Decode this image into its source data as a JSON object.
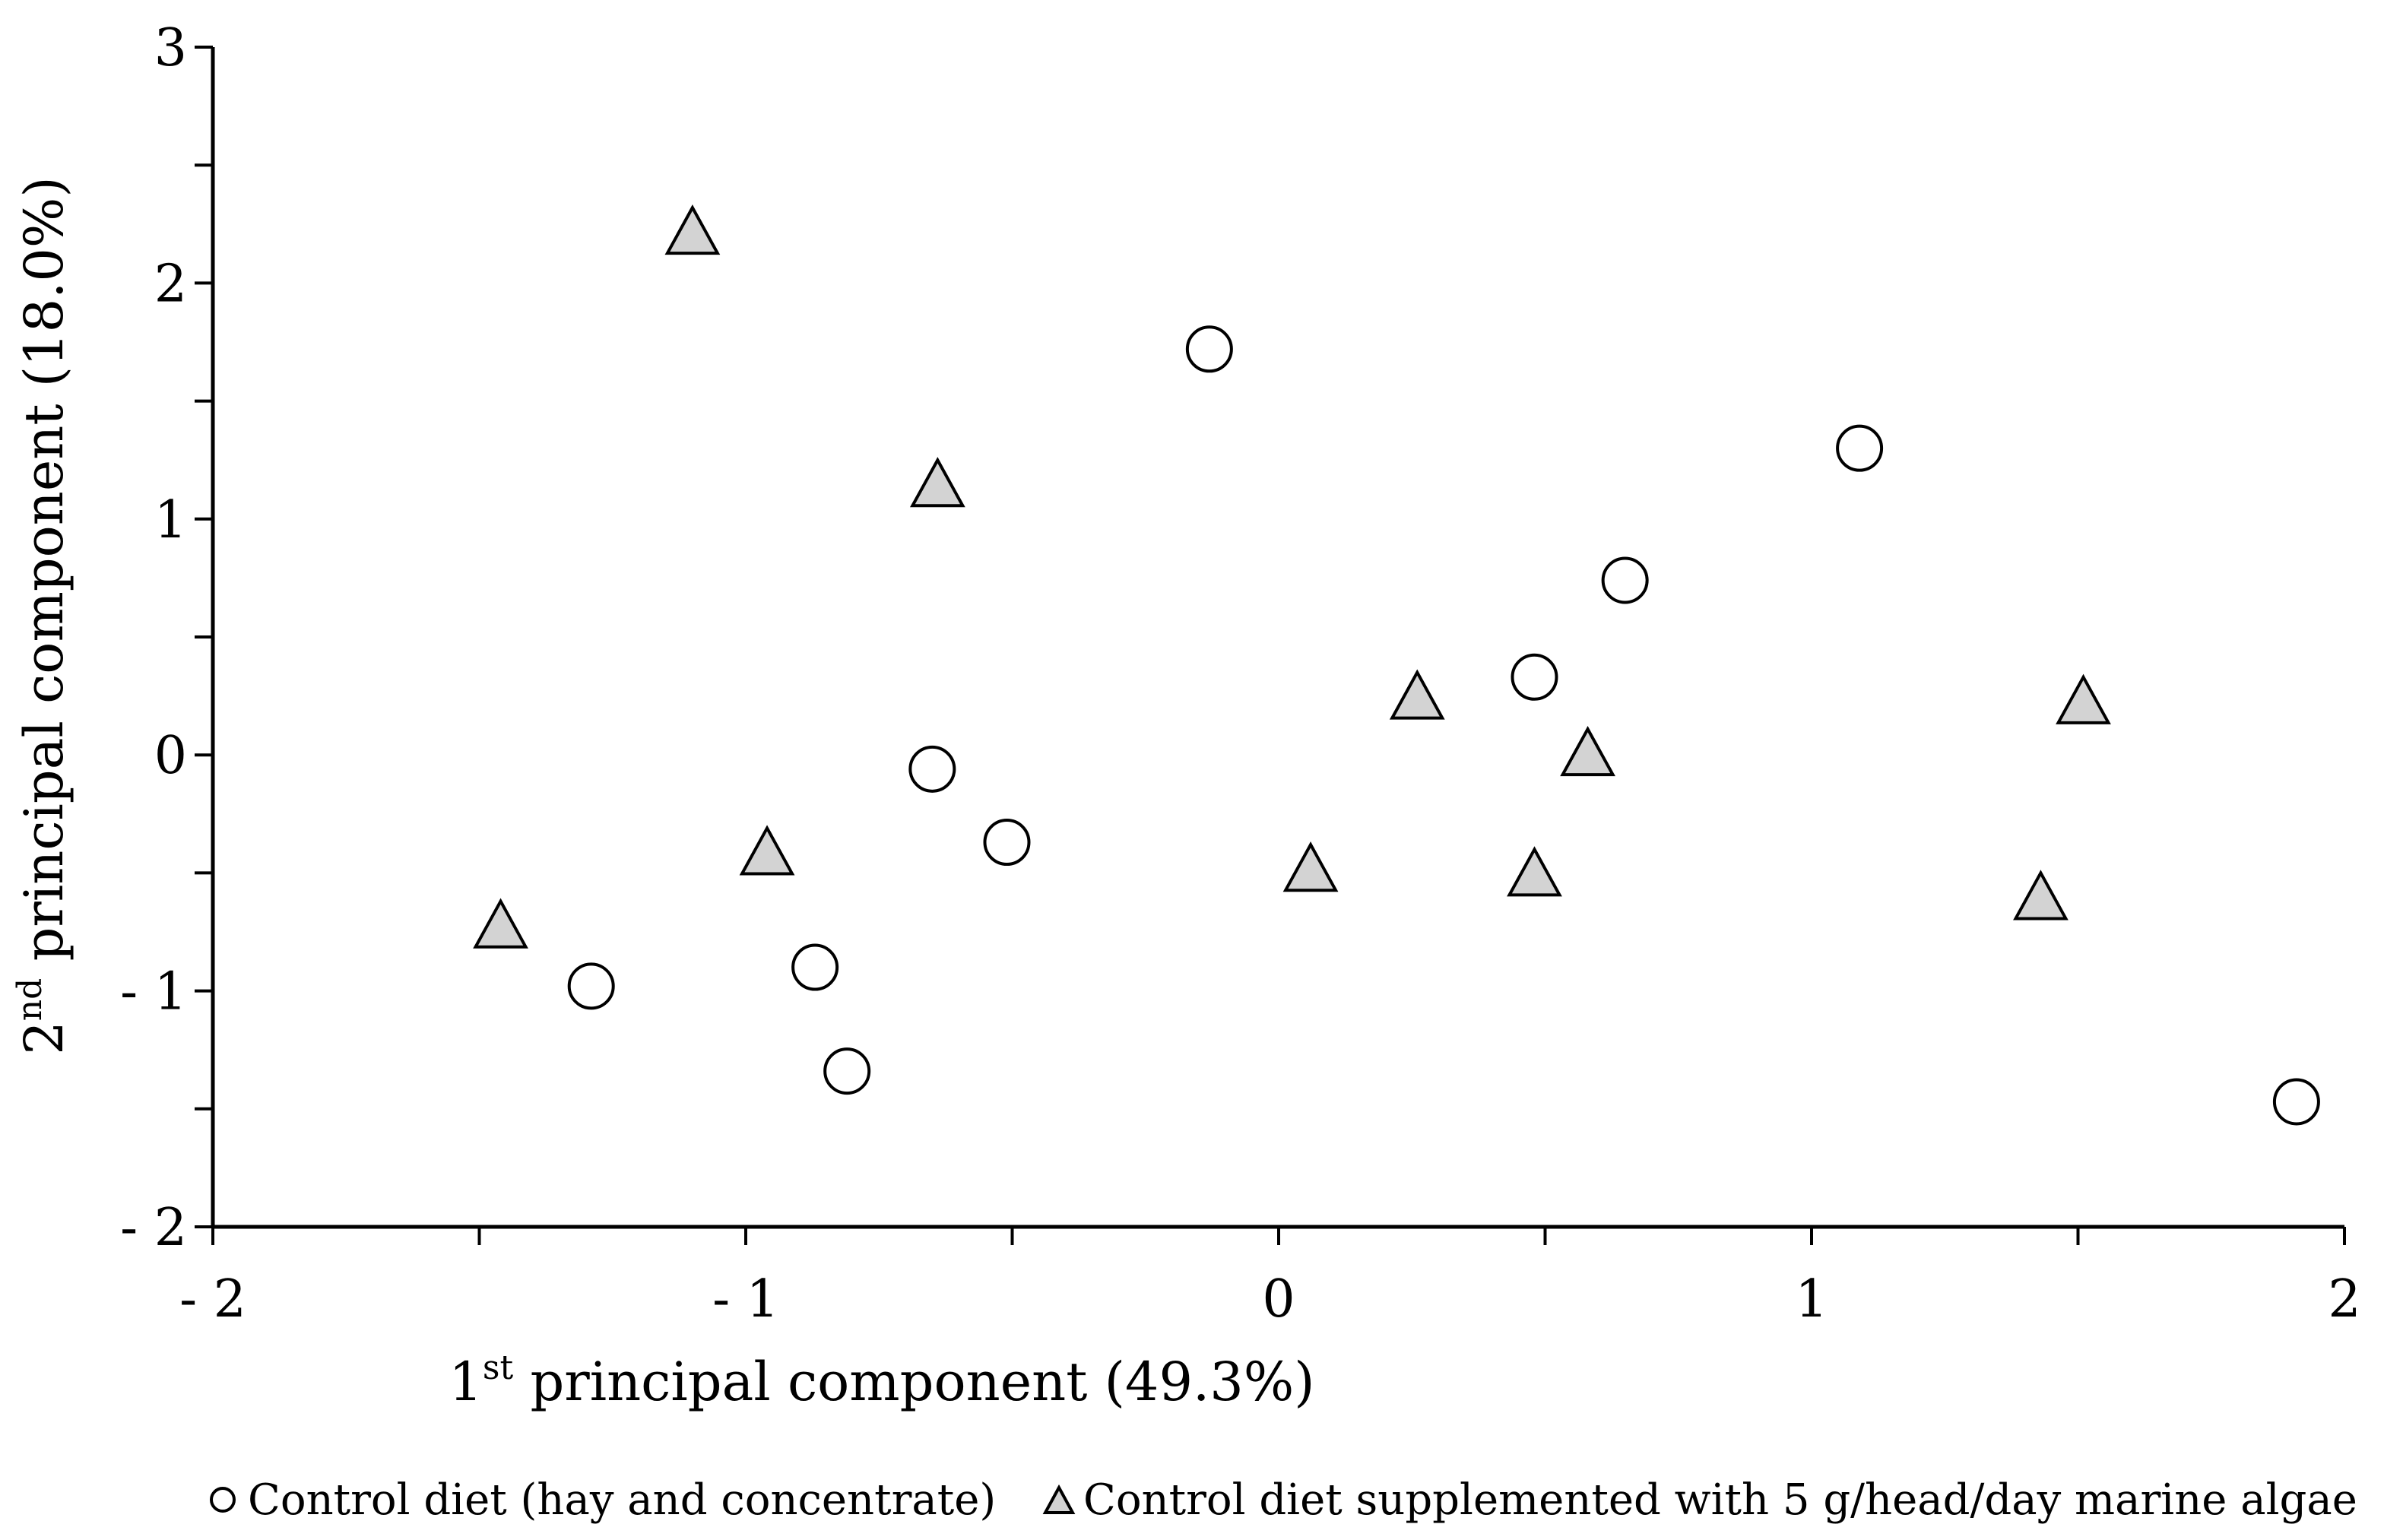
{
  "chart_data": {
    "type": "scatter",
    "title": "",
    "xlabel": {
      "prefix": "1",
      "sup": "st",
      "rest": " principal component (49.3%)"
    },
    "ylabel": {
      "prefix": "2",
      "sup": "nd",
      "rest": " principal component (18.0%)"
    },
    "xlim": [
      -2,
      2
    ],
    "ylim": [
      -2,
      3
    ],
    "x_ticks": [
      -2,
      -1,
      0,
      1,
      2
    ],
    "x_tick_labels": [
      "- 2",
      "- 1",
      "0",
      "1",
      "2"
    ],
    "y_ticks": [
      -2,
      -1,
      0,
      1,
      2,
      3
    ],
    "y_tick_labels": [
      "- 2",
      "- 1",
      "0",
      "1",
      "2",
      "3"
    ],
    "grid": false,
    "legend_position": "bottom",
    "series": [
      {
        "name": "Control diet (hay and concentrate)",
        "marker": "circle",
        "color": "#ffffff",
        "stroke": "#000000",
        "points": [
          {
            "x": -0.13,
            "y": 1.72
          },
          {
            "x": 1.09,
            "y": 1.3
          },
          {
            "x": 0.65,
            "y": 0.74
          },
          {
            "x": 0.48,
            "y": 0.33
          },
          {
            "x": -0.65,
            "y": -0.06
          },
          {
            "x": -0.51,
            "y": -0.37
          },
          {
            "x": -1.29,
            "y": -0.98
          },
          {
            "x": -0.87,
            "y": -0.9
          },
          {
            "x": -0.81,
            "y": -1.34
          },
          {
            "x": 1.91,
            "y": -1.47
          }
        ]
      },
      {
        "name": "Control diet supplemented with 5 g/head/day marine algae",
        "marker": "triangle",
        "color": "#d3d3d3",
        "stroke": "#000000",
        "points": [
          {
            "x": -1.1,
            "y": 2.2
          },
          {
            "x": -0.64,
            "y": 1.13
          },
          {
            "x": 0.26,
            "y": 0.23
          },
          {
            "x": 0.58,
            "y": -0.01
          },
          {
            "x": 1.51,
            "y": 0.21
          },
          {
            "x": -0.96,
            "y": -0.43
          },
          {
            "x": 0.06,
            "y": -0.5
          },
          {
            "x": 0.48,
            "y": -0.52
          },
          {
            "x": -1.46,
            "y": -0.74
          },
          {
            "x": 1.43,
            "y": -0.62
          }
        ]
      }
    ]
  }
}
